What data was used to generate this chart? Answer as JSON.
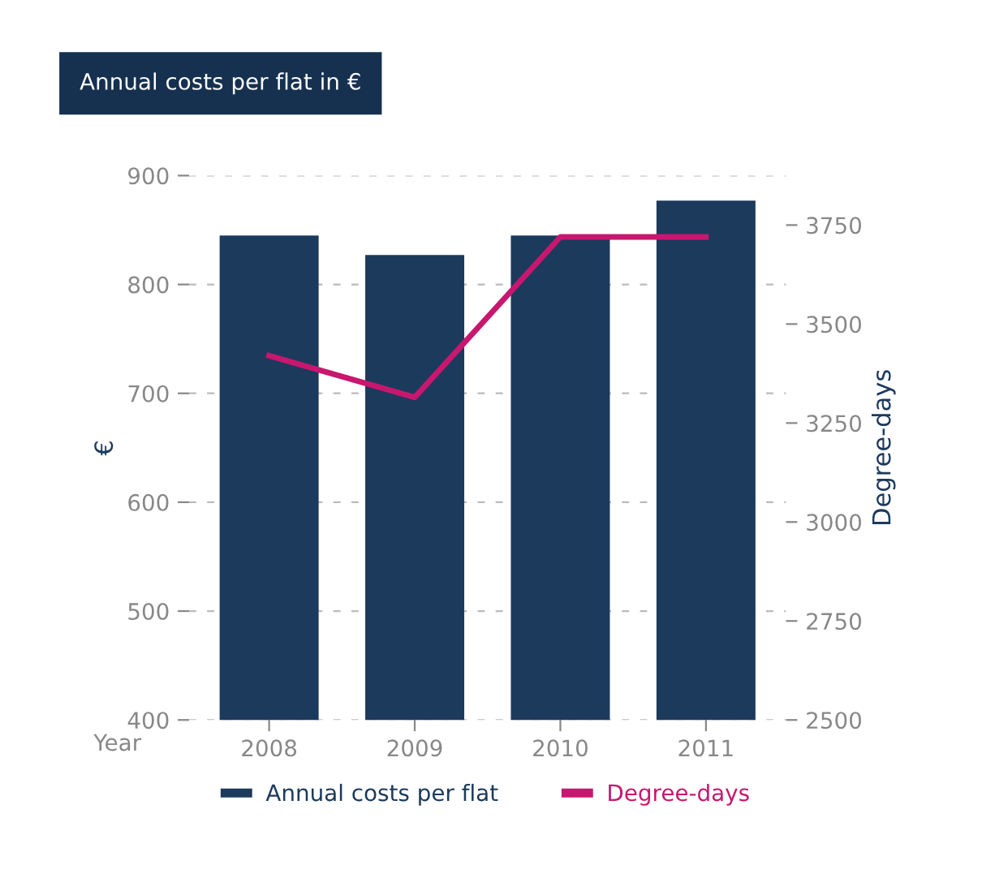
{
  "chart_data": {
    "type": "bar",
    "title": "Annual costs per flat in €",
    "xlabel": "Year",
    "ylabel": "€",
    "y2label": "Degree-days",
    "categories": [
      "2008",
      "2009",
      "2010",
      "2011"
    ],
    "series": [
      {
        "name": "Annual costs per flat",
        "color": "#1c3a5c",
        "values": [
          845,
          827,
          845,
          877
        ]
      },
      {
        "name": "Degree-days",
        "type": "line",
        "axis": "y2",
        "color": "#c8176e",
        "values": [
          3420,
          3315,
          3720,
          3720
        ]
      }
    ],
    "ylim": [
      400,
      900
    ],
    "yticks": [
      400,
      500,
      600,
      700,
      800,
      900
    ],
    "y2lim": [
      2500,
      3875
    ],
    "y2ticks": [
      2500,
      2750,
      3000,
      3250,
      3500,
      3750
    ],
    "grid": "y",
    "legend": "bottom",
    "marker": "none",
    "line_style": "solid"
  }
}
